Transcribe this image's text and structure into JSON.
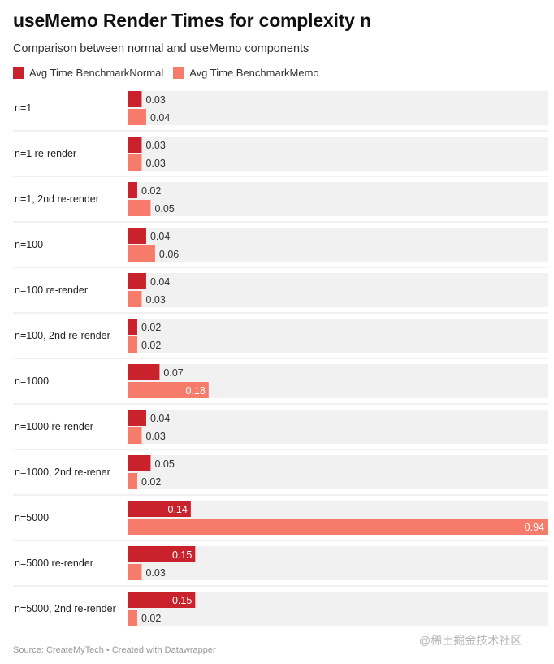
{
  "title": "useMemo Render Times for complexity n",
  "subtitle": "Comparison between normal and useMemo components",
  "footer": "Source: CreateMyTech • Created with Datawrapper",
  "watermark": "@稀土掘金技术社区",
  "chart_data": {
    "type": "bar",
    "orientation": "horizontal",
    "categories": [
      "n=1",
      "n=1 re-render",
      "n=1, 2nd re-render",
      "n=100",
      "n=100 re-render",
      "n=100, 2nd re-render",
      "n=1000",
      "n=1000 re-render",
      "n=1000, 2nd re-rener",
      "n=5000",
      "n=5000 re-render",
      "n=5000, 2nd re-render"
    ],
    "series": [
      {
        "name": "Avg Time BenchmarkNormal",
        "color": "#c9222d",
        "values": [
          0.03,
          0.03,
          0.02,
          0.04,
          0.04,
          0.02,
          0.07,
          0.04,
          0.05,
          0.14,
          0.15,
          0.15
        ]
      },
      {
        "name": "Avg Time BenchmarkMemo",
        "color": "#f77b6b",
        "values": [
          0.04,
          0.03,
          0.05,
          0.06,
          0.03,
          0.02,
          0.18,
          0.03,
          0.02,
          0.94,
          0.03,
          0.02
        ]
      }
    ],
    "xlim": [
      0,
      0.94
    ],
    "legend_position": "top-left",
    "grid": false,
    "row_background": "#f1f1f1"
  }
}
